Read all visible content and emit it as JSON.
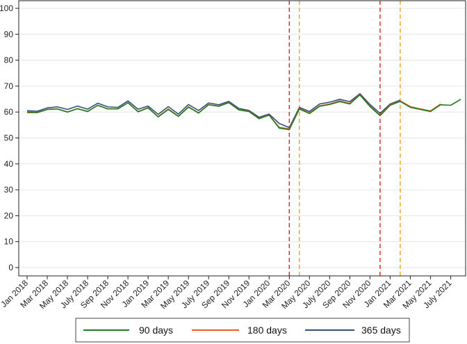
{
  "chart_data": {
    "type": "line",
    "title": "",
    "xlabel": "",
    "ylabel": "",
    "ylim": [
      0,
      100
    ],
    "yticks": [
      0,
      10,
      20,
      30,
      40,
      50,
      60,
      70,
      80,
      90,
      100
    ],
    "grid": "horizontal",
    "x": [
      "Jan 2018",
      "Feb 2018",
      "Mar 2018",
      "Apr 2018",
      "May 2018",
      "Jun 2018",
      "Jul 2018",
      "Aug 2018",
      "Sep 2018",
      "Oct 2018",
      "Nov 2018",
      "Dec 2018",
      "Jan 2019",
      "Feb 2019",
      "Mar 2019",
      "Apr 2019",
      "May 2019",
      "Jun 2019",
      "Jul 2019",
      "Aug 2019",
      "Sep 2019",
      "Oct 2019",
      "Nov 2019",
      "Dec 2019",
      "Jan 2020",
      "Feb 2020",
      "Mar 2020",
      "Apr 2020",
      "May 2020",
      "Jun 2020",
      "Jul 2020",
      "Aug 2020",
      "Sep 2020",
      "Oct 2020",
      "Nov 2020",
      "Dec 2020",
      "Jan 2021",
      "Feb 2021",
      "Mar 2021",
      "Apr 2021",
      "May 2021",
      "Jun 2021",
      "Jul 2021",
      "Aug 2021"
    ],
    "xtick_labels": [
      "Jan 2018",
      "Mar 2018",
      "May 2018",
      "July 2018",
      "Sep 2018",
      "Nov 2018",
      "Jan 2019",
      "Mar 2019",
      "May 2019",
      "July 2019",
      "Sep 2019",
      "Nov 2019",
      "Jan 2020",
      "Mar 2020",
      "May 2020",
      "July 2020",
      "Sep 2020",
      "Nov 2020",
      "Jan 2021",
      "Mar 2021",
      "May 2021",
      "July 2021"
    ],
    "series": [
      {
        "name": "90 days",
        "color": "#1e7a1e",
        "values": [
          60,
          59.8,
          61,
          61.2,
          60,
          61.3,
          60.2,
          62.6,
          61.2,
          61.2,
          63.6,
          60.1,
          61.6,
          58.1,
          61,
          58.3,
          61.9,
          59.6,
          62.8,
          62.2,
          63.6,
          60.8,
          60.2,
          57.4,
          58.8,
          53.8,
          53.2,
          61.2,
          59.4,
          62.2,
          62.9,
          64,
          63.1,
          66.6,
          62.1,
          58.6,
          62.6,
          64.1,
          61.8,
          61,
          60.2,
          62.8,
          62.6,
          64.9
        ]
      },
      {
        "name": "180 days",
        "color": "#f05a22",
        "values": [
          59.7,
          59.8,
          61,
          61.2,
          60,
          61.3,
          60.2,
          62.6,
          61.2,
          61.2,
          63.6,
          60.2,
          61.7,
          58.2,
          61.2,
          58.4,
          62,
          59.7,
          62.9,
          62.3,
          63.7,
          60.9,
          60.3,
          57.5,
          58.9,
          54.1,
          53.5,
          61.4,
          59.6,
          62.4,
          63.1,
          64.3,
          63.3,
          66.8,
          62.3,
          58.8,
          62.8,
          64.3,
          62.1,
          61.2,
          60.4,
          63.1,
          null,
          null
        ]
      },
      {
        "name": "365 days",
        "color": "#2f4f7f",
        "values": [
          60.5,
          60.3,
          61.6,
          62,
          61,
          62.3,
          61.1,
          63.4,
          62,
          61.8,
          64.3,
          61.1,
          62.3,
          59.1,
          62.1,
          59.2,
          62.9,
          60.6,
          63.5,
          62.8,
          64.1,
          61.4,
          60.6,
          58,
          59.2,
          55.6,
          54,
          61.8,
          60.2,
          63.1,
          63.8,
          64.9,
          64,
          67.1,
          62.9,
          59.5,
          63.1,
          64.6,
          null,
          null,
          null,
          null,
          null,
          null
        ]
      }
    ],
    "reference_lines": [
      {
        "x": "Mar 2020",
        "color": "#e02020",
        "style": "dashed"
      },
      {
        "x": "Apr 2020",
        "color": "#f0a020",
        "style": "dashed"
      },
      {
        "x": "Dec 2020",
        "color": "#e02020",
        "style": "dashed"
      },
      {
        "x": "Feb 2021",
        "color": "#f0a020",
        "style": "dashed"
      }
    ],
    "legend_position": "bottom"
  }
}
